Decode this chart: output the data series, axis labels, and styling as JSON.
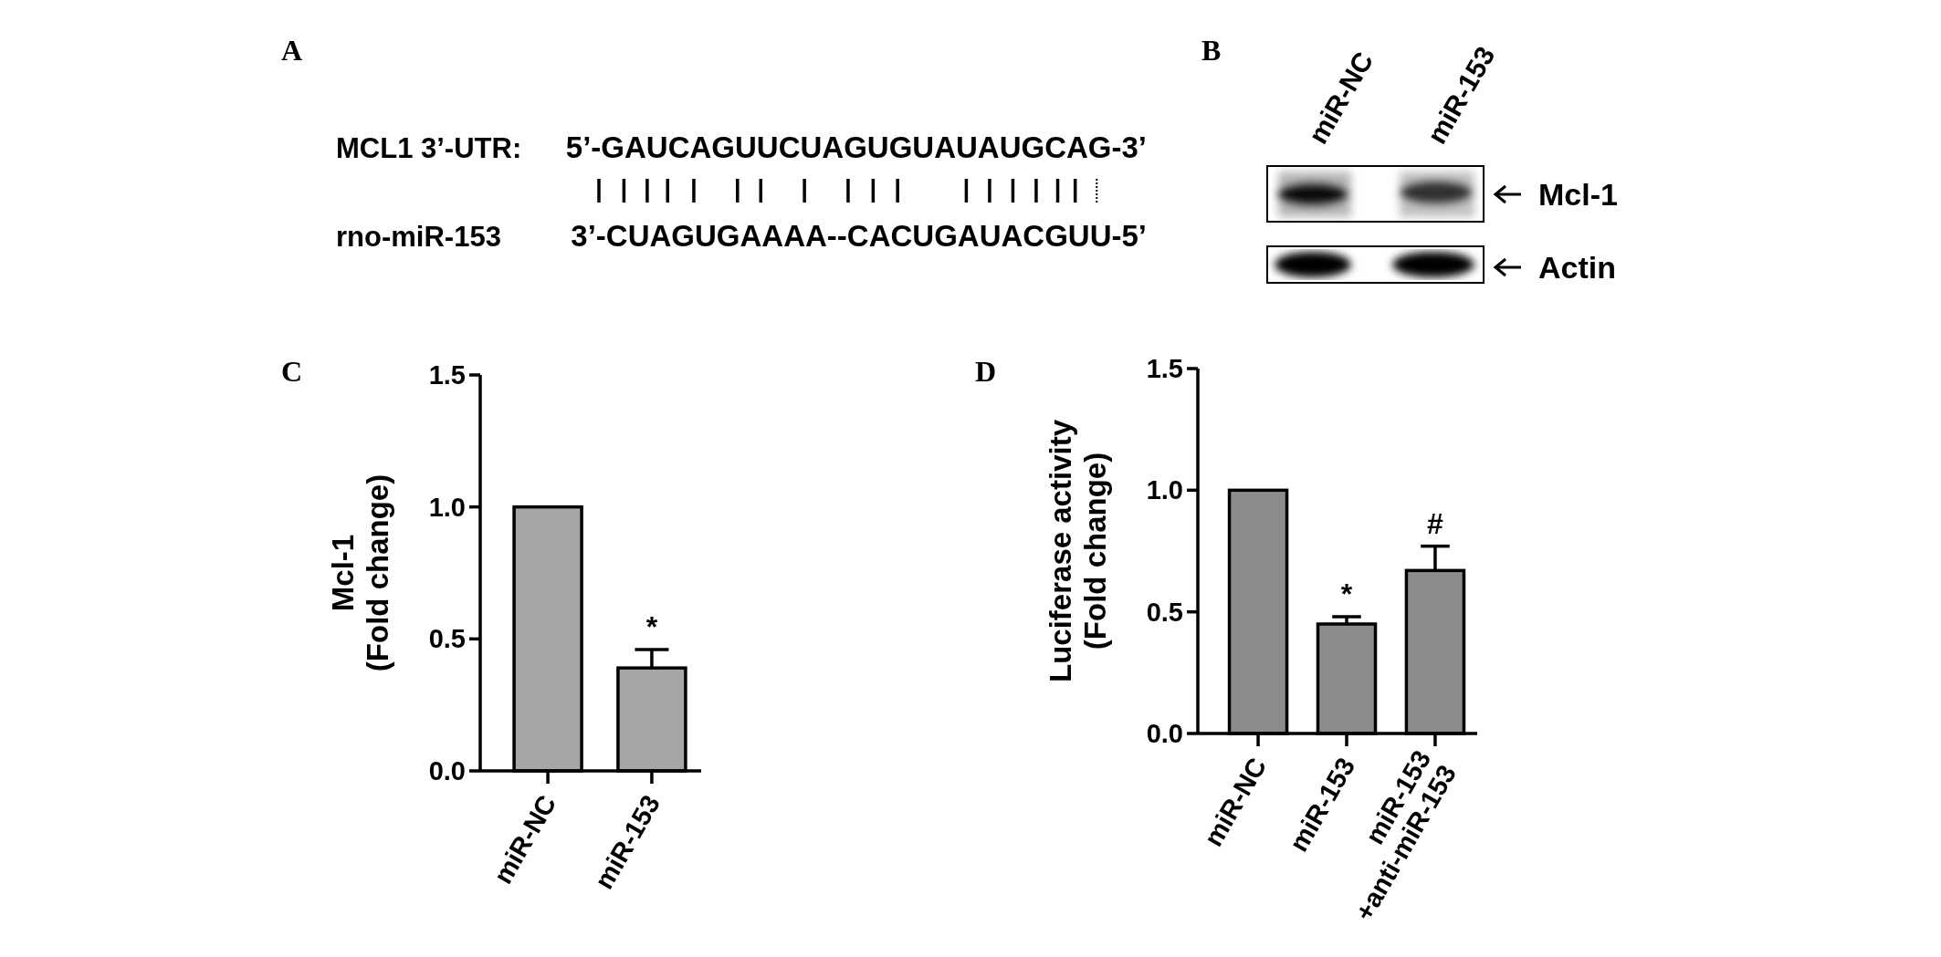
{
  "chart_data": [
    {
      "type": "other",
      "title": "A",
      "annotations": [
        "MCL1 3’-UTR:",
        "5’-GAUCAGUUCUAGUGUAUAUGCAG-3’",
        "rno-miR-153",
        "3’-CUAGUGAAAA--CACUGAUACGUU-5’"
      ]
    },
    {
      "type": "other",
      "title": "B",
      "annotations": [
        "miR-NC",
        "miR-153",
        "Mcl-1",
        "Actin"
      ]
    },
    {
      "type": "bar",
      "title": "C",
      "ylabel": "Mcl-1\n(Fold change)",
      "categories": [
        "miR-NC",
        "miR-153"
      ],
      "values": [
        1.0,
        0.39
      ],
      "errors": [
        null,
        [
          0.39,
          0.46
        ]
      ],
      "color": "#a6a6a6",
      "ylim": [
        0,
        1.5
      ],
      "yticks": [
        {
          "value": 0,
          "label": "0.0"
        },
        {
          "value": 0.5,
          "label": "0.5"
        },
        {
          "value": 1,
          "label": "1.0"
        },
        {
          "value": 1.5,
          "label": "1.5"
        }
      ],
      "grid": false,
      "annotations": [
        {
          "text": "*",
          "x": "miR-153",
          "y": 0.46
        }
      ]
    },
    {
      "type": "bar",
      "title": "D",
      "ylabel": "Luciferase activity\n(Fold change)",
      "categories": [
        "miR-NC",
        "miR-153",
        "miR-153\n+anti-miR-153"
      ],
      "values": [
        1.0,
        0.45,
        0.67
      ],
      "errors": [
        null,
        [
          0.45,
          0.48
        ],
        [
          0.67,
          0.77
        ]
      ],
      "color": "#8c8c8c",
      "ylim": [
        0,
        1.5
      ],
      "yticks": [
        {
          "value": 0,
          "label": "0.0"
        },
        {
          "value": 0.5,
          "label": "0.5"
        },
        {
          "value": 1,
          "label": "1.0"
        },
        {
          "value": 1.5,
          "label": "1.5"
        }
      ],
      "grid": false,
      "annotations": [
        {
          "text": "*",
          "x": "miR-153",
          "y": 0.48
        },
        {
          "text": "#",
          "x": "miR-153\n+anti-miR-153",
          "y": 0.77
        }
      ]
    }
  ]
}
